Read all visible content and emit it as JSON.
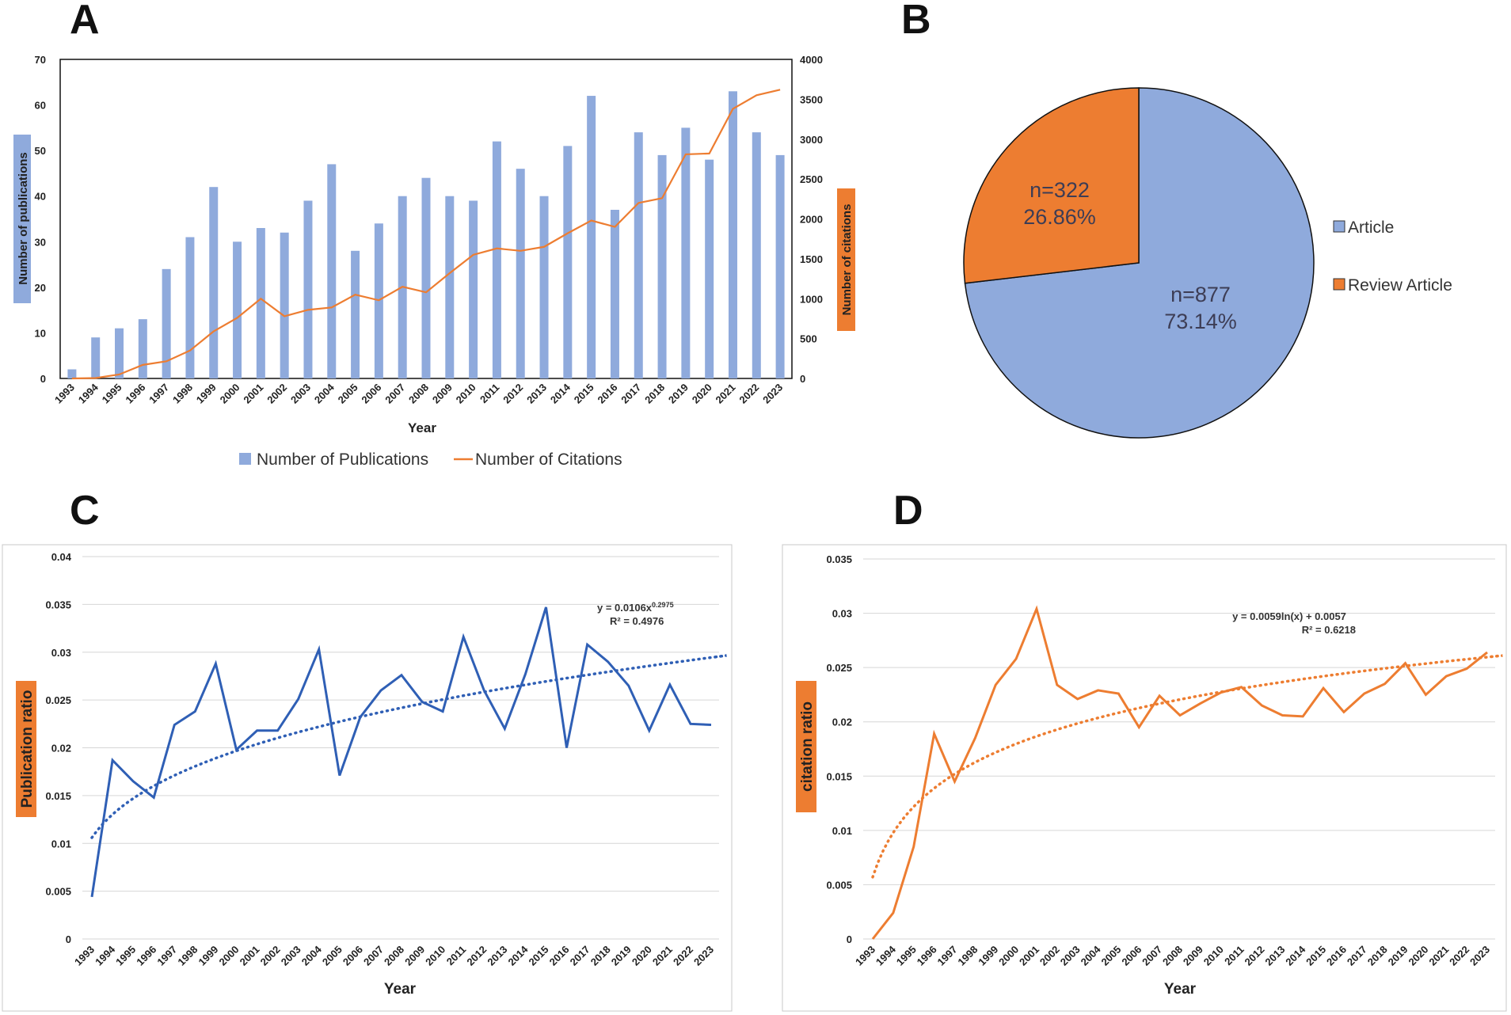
{
  "panels": {
    "a": "A",
    "b": "B",
    "c": "C",
    "d": "D"
  },
  "colors": {
    "blue_bar": "#8faadc",
    "orange": "#ed7d31",
    "blue_line": "#2f5fb5",
    "label_bg_blue": "#8faadc",
    "label_bg_orange": "#ed7d31"
  },
  "chart_data": [
    {
      "id": "A",
      "type": "bar",
      "title": "",
      "xlabel": "Year",
      "ylabel": "Number of publications",
      "y2label": "Number of citations",
      "categories": [
        "1993",
        "1994",
        "1995",
        "1996",
        "1997",
        "1998",
        "1999",
        "2000",
        "2001",
        "2002",
        "2003",
        "2004",
        "2005",
        "2006",
        "2007",
        "2008",
        "2009",
        "2010",
        "2011",
        "2012",
        "2013",
        "2014",
        "2015",
        "2016",
        "2017",
        "2018",
        "2019",
        "2020",
        "2021",
        "2022",
        "2023"
      ],
      "ylim": [
        0,
        70
      ],
      "y_ticks": [
        "0",
        "10",
        "20",
        "30",
        "40",
        "50",
        "60",
        "70"
      ],
      "y2lim": [
        0,
        4000
      ],
      "y2_ticks": [
        "0",
        "500",
        "1000",
        "1500",
        "2000",
        "2500",
        "3000",
        "3500",
        "4000"
      ],
      "series": [
        {
          "name": "Number of Publications",
          "axis": "left",
          "kind": "bar",
          "values": [
            2,
            9,
            11,
            13,
            24,
            31,
            42,
            30,
            33,
            32,
            39,
            47,
            28,
            34,
            40,
            44,
            40,
            39,
            52,
            46,
            40,
            51,
            62,
            37,
            54,
            49,
            55,
            48,
            63,
            54,
            49
          ]
        },
        {
          "name": "Number of Citations",
          "axis": "right",
          "kind": "line",
          "values": [
            0,
            5,
            50,
            170,
            215,
            350,
            590,
            760,
            1000,
            780,
            860,
            890,
            1050,
            980,
            1150,
            1080,
            1320,
            1550,
            1630,
            1600,
            1650,
            1820,
            1980,
            1900,
            2200,
            2260,
            2810,
            2820,
            3380,
            3550,
            3620
          ]
        }
      ],
      "legend": [
        "Number of Publications",
        "Number of Citations"
      ],
      "legend_position": "bottom"
    },
    {
      "id": "B",
      "type": "pie",
      "slices": [
        {
          "name": "Article",
          "count_label": "n=877",
          "percent_label": "73.14%",
          "value": 73.14
        },
        {
          "name": "Review Article",
          "count_label": "n=322",
          "percent_label": "26.86%",
          "value": 26.86
        }
      ],
      "legend": [
        "Article",
        "Review Article"
      ],
      "legend_position": "right"
    },
    {
      "id": "C",
      "type": "line",
      "xlabel": "Year",
      "ylabel": "Publication ratio",
      "categories": [
        "1993",
        "1994",
        "1995",
        "1996",
        "1997",
        "1998",
        "1999",
        "2000",
        "2001",
        "2002",
        "2003",
        "2004",
        "2005",
        "2006",
        "2007",
        "2008",
        "2009",
        "2010",
        "2011",
        "2012",
        "2013",
        "2014",
        "2015",
        "2016",
        "2017",
        "2018",
        "2019",
        "2020",
        "2021",
        "2022",
        "2023"
      ],
      "ylim": [
        0,
        0.04
      ],
      "y_ticks": [
        "0",
        "0.005",
        "0.01",
        "0.015",
        "0.02",
        "0.025",
        "0.03",
        "0.035",
        "0.04"
      ],
      "series": [
        {
          "name": "Publication ratio",
          "values": [
            0.0044,
            0.0187,
            0.0165,
            0.0148,
            0.0224,
            0.0238,
            0.0288,
            0.0198,
            0.0218,
            0.0218,
            0.0251,
            0.0303,
            0.0171,
            0.0232,
            0.026,
            0.0276,
            0.0248,
            0.0238,
            0.0316,
            0.026,
            0.022,
            0.0277,
            0.0347,
            0.02,
            0.0308,
            0.029,
            0.0265,
            0.0218,
            0.0266,
            0.0225,
            0.0224
          ]
        }
      ],
      "trendline": {
        "type": "power",
        "a": 0.0106,
        "b": 0.2975
      },
      "equation": "y = 0.0106x",
      "equation_exp": "0.2975",
      "r2": "R² = 0.4976"
    },
    {
      "id": "D",
      "type": "line",
      "xlabel": "Year",
      "ylabel": "citation ratio",
      "categories": [
        "1993",
        "1994",
        "1995",
        "1996",
        "1997",
        "1998",
        "1999",
        "2000",
        "2001",
        "2002",
        "2003",
        "2004",
        "2005",
        "2006",
        "2007",
        "2008",
        "2009",
        "2010",
        "2011",
        "2012",
        "2013",
        "2014",
        "2015",
        "2016",
        "2017",
        "2018",
        "2019",
        "2020",
        "2021",
        "2022",
        "2023"
      ],
      "ylim": [
        0,
        0.035
      ],
      "y_ticks": [
        "0",
        "0.005",
        "0.01",
        "0.015",
        "0.02",
        "0.025",
        "0.03",
        "0.035"
      ],
      "series": [
        {
          "name": "citation ratio",
          "values": [
            0.0,
            0.0024,
            0.0085,
            0.0189,
            0.0145,
            0.0185,
            0.0234,
            0.0258,
            0.0304,
            0.0234,
            0.0221,
            0.0229,
            0.0226,
            0.0195,
            0.0224,
            0.0206,
            0.0217,
            0.0227,
            0.0232,
            0.0215,
            0.0206,
            0.0205,
            0.0231,
            0.0209,
            0.0226,
            0.0235,
            0.0254,
            0.0225,
            0.0242,
            0.0249,
            0.0264
          ]
        }
      ],
      "trendline": {
        "type": "log",
        "a": 0.0059,
        "b": 0.0057
      },
      "equation": "y = 0.0059ln(x) + 0.0057",
      "r2": "R² = 0.6218"
    }
  ]
}
